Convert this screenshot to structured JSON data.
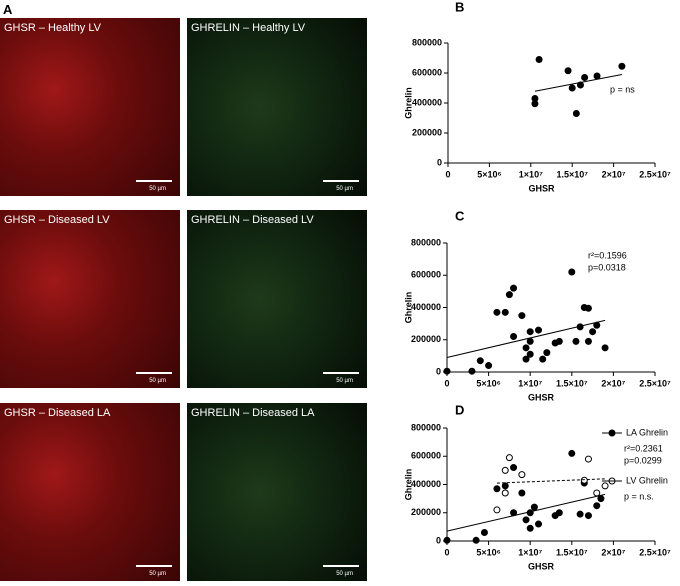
{
  "figure_label": "A",
  "panels": [
    {
      "label": "GHSR – Healthy LV",
      "scale": "50 µm"
    },
    {
      "label": "GHRELIN – Healthy LV",
      "scale": "50 µm"
    },
    {
      "label": "GHSR – Diseased LV",
      "scale": "50 µm"
    },
    {
      "label": "GHRELIN – Diseased LV",
      "scale": "50 µm"
    },
    {
      "label": "GHSR – Diseased LA",
      "scale": "50 µm"
    },
    {
      "label": "GHRELIN – Diseased LA",
      "scale": "50 µm"
    }
  ],
  "chart_data": [
    {
      "type": "scatter",
      "panel_label": "B",
      "x_label": "GHSR",
      "y_label": "Ghrelin",
      "xlim": [
        0,
        25000000
      ],
      "ylim": [
        0,
        800000
      ],
      "xticks": [
        0,
        {
          "value": 5000000,
          "label": "5×10⁶"
        },
        {
          "value": 10000000,
          "label": "1×10⁷"
        },
        {
          "value": 15000000,
          "label": "1.5×10⁷"
        },
        {
          "value": 20000000,
          "label": "2×10⁷"
        },
        {
          "value": 25000000,
          "label": "2.5×10⁷"
        }
      ],
      "yticks": [
        0,
        200000,
        400000,
        600000,
        800000
      ],
      "series": [
        {
          "color": "#000000",
          "marker": "filled",
          "x": [
            10500000,
            10500000,
            11000000,
            14500000,
            15000000,
            15500000,
            16000000,
            16500000,
            18000000,
            21000000
          ],
          "values": [
            430000,
            395000,
            690000,
            615000,
            500000,
            330000,
            520000,
            570000,
            580000,
            645000
          ],
          "fit": {
            "x": [
              10500000,
              21000000
            ],
            "y": [
              478000,
              590000
            ],
            "dashed": false
          },
          "stats": [
            "p = ns"
          ]
        }
      ]
    },
    {
      "type": "scatter",
      "panel_label": "C",
      "x_label": "GHSR",
      "y_label": "Ghrelin",
      "xlim": [
        0,
        25000000
      ],
      "ylim": [
        0,
        800000
      ],
      "xticks": [
        0,
        {
          "value": 5000000,
          "label": "5×10⁶"
        },
        {
          "value": 10000000,
          "label": "1×10⁷"
        },
        {
          "value": 15000000,
          "label": "1.5×10⁷"
        },
        {
          "value": 20000000,
          "label": "2×10⁷"
        },
        {
          "value": 25000000,
          "label": "2.5×10⁷"
        }
      ],
      "yticks": [
        0,
        200000,
        400000,
        600000,
        800000
      ],
      "series": [
        {
          "color": "#000000",
          "marker": "filled",
          "x": [
            0,
            3000000,
            4000000,
            5000000,
            6000000,
            7000000,
            7500000,
            8000000,
            8000000,
            9000000,
            9500000,
            9500000,
            10000000,
            10000000,
            10000000,
            11000000,
            11500000,
            12000000,
            13000000,
            13500000,
            15000000,
            15500000,
            16000000,
            16500000,
            17000000,
            17000000,
            17500000,
            18000000,
            19000000
          ],
          "values": [
            5000,
            5000,
            70000,
            40000,
            370000,
            370000,
            480000,
            520000,
            220000,
            350000,
            150000,
            80000,
            110000,
            190000,
            250000,
            260000,
            80000,
            120000,
            180000,
            190000,
            620000,
            190000,
            280000,
            400000,
            395000,
            190000,
            250000,
            290000,
            150000
          ],
          "fit": {
            "x": [
              0,
              19000000
            ],
            "y": [
              90000,
              320000
            ],
            "dashed": false
          },
          "stats": [
            "r²=0.1596",
            "p=0.0318"
          ]
        }
      ]
    },
    {
      "type": "scatter",
      "panel_label": "D",
      "x_label": "GHSR",
      "y_label": "Ghrelin",
      "xlim": [
        0,
        25000000
      ],
      "ylim": [
        0,
        800000
      ],
      "legend": "right",
      "xticks": [
        0,
        {
          "value": 5000000,
          "label": "5×10⁶"
        },
        {
          "value": 10000000,
          "label": "1×10⁷"
        },
        {
          "value": 15000000,
          "label": "1.5×10⁷"
        },
        {
          "value": 20000000,
          "label": "2×10⁷"
        },
        {
          "value": 25000000,
          "label": "2.5×10⁷"
        }
      ],
      "yticks": [
        0,
        200000,
        400000,
        600000,
        800000
      ],
      "series": [
        {
          "name": "LA Ghrelin",
          "color": "#000000",
          "marker": "filled",
          "x": [
            0,
            3500000,
            4500000,
            6000000,
            7000000,
            8000000,
            8000000,
            9000000,
            9500000,
            10000000,
            10000000,
            10500000,
            11000000,
            13000000,
            13500000,
            15000000,
            16000000,
            16500000,
            17000000,
            18000000,
            18500000
          ],
          "values": [
            5000,
            5000,
            60000,
            370000,
            390000,
            520000,
            200000,
            340000,
            150000,
            90000,
            200000,
            240000,
            120000,
            180000,
            200000,
            620000,
            190000,
            410000,
            180000,
            250000,
            300000
          ],
          "fit": {
            "x": [
              0,
              19000000
            ],
            "y": [
              70000,
              330000
            ],
            "dashed": false
          },
          "stats": [
            "r²=0.2361",
            "p=0.0299"
          ]
        },
        {
          "name": "LV Ghrelin",
          "color": "#000000",
          "marker": "open",
          "x": [
            6000000,
            7000000,
            7000000,
            7500000,
            9000000,
            16500000,
            17000000,
            18000000,
            19000000
          ],
          "values": [
            220000,
            340000,
            500000,
            590000,
            470000,
            430000,
            580000,
            340000,
            390000
          ],
          "fit": {
            "x": [
              6000000,
              19000000
            ],
            "y": [
              410000,
              440000
            ],
            "dashed": true
          },
          "stats": [
            "p = n.s."
          ]
        }
      ]
    }
  ]
}
